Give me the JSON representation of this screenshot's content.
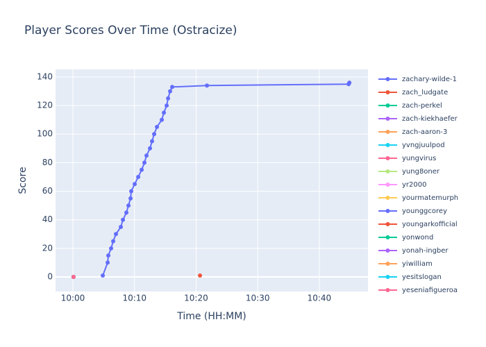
{
  "chart_data": {
    "type": "line",
    "title": "Player Scores Over Time (Ostracize)",
    "x_label": "Time (HH:MM)",
    "y_label": "Score",
    "xlim": [
      597.18,
      647.9
    ],
    "ylim": [
      -10.2,
      145.3
    ],
    "xticks": [
      {
        "value": 600,
        "label": "10:00"
      },
      {
        "value": 610,
        "label": "10:10"
      },
      {
        "value": 620,
        "label": "10:20"
      },
      {
        "value": 630,
        "label": "10:30"
      },
      {
        "value": 640,
        "label": "10:40"
      }
    ],
    "yticks": [
      0,
      20,
      40,
      60,
      80,
      100,
      120,
      140
    ],
    "grid": true,
    "legend": "right",
    "series": [
      {
        "name": "zachary-wilde-1",
        "color": "#636efa",
        "x": [
          604.85,
          605.64,
          605.75,
          606.2,
          606.54,
          606.99,
          607.78,
          608.12,
          608.68,
          609.02,
          609.36,
          609.47,
          610.03,
          610.6,
          611.16,
          611.61,
          611.95,
          612.51,
          612.85,
          613.19,
          613.64,
          614.43,
          614.77,
          615.22,
          615.45,
          615.78,
          616.12,
          621.76,
          644.76,
          644.88
        ],
        "values": [
          1,
          10,
          15,
          20,
          25,
          30,
          35,
          40,
          45,
          50,
          55,
          60,
          65,
          70,
          75,
          80,
          85,
          90,
          95,
          100,
          105,
          110,
          115,
          120,
          125,
          130,
          133,
          134,
          135,
          136
        ]
      },
      {
        "name": "zach_ludgate",
        "color": "#EF553B",
        "x": [
          620.63
        ],
        "values": [
          1
        ]
      },
      {
        "name": "zach-perkel",
        "color": "#00cc96",
        "x": [
          600.1
        ],
        "values": [
          0
        ]
      },
      {
        "name": "zach-kiekhaefer",
        "color": "#ab63fa",
        "x": [
          600.1
        ],
        "values": [
          0
        ]
      },
      {
        "name": "zach-aaron-3",
        "color": "#FFA15A",
        "x": [
          600.1
        ],
        "values": [
          0
        ]
      },
      {
        "name": "yvngjuulpod",
        "color": "#19d3f3",
        "x": [
          600.1
        ],
        "values": [
          0
        ]
      },
      {
        "name": "yungvirus",
        "color": "#FF6692",
        "x": [
          600.1
        ],
        "values": [
          0
        ]
      },
      {
        "name": "yung8oner",
        "color": "#B6E880",
        "x": [
          600.1
        ],
        "values": [
          0
        ]
      },
      {
        "name": "yr2000",
        "color": "#FF97FF",
        "x": [
          600.1
        ],
        "values": [
          0
        ]
      },
      {
        "name": "yourmatemurph",
        "color": "#FECB52",
        "x": [
          600.1
        ],
        "values": [
          0
        ]
      },
      {
        "name": "younggcorey",
        "color": "#636efa",
        "x": [
          600.1
        ],
        "values": [
          0
        ]
      },
      {
        "name": "youngarkofficial",
        "color": "#EF553B",
        "x": [
          600.1
        ],
        "values": [
          0
        ]
      },
      {
        "name": "yonwond",
        "color": "#00cc96",
        "x": [
          600.1
        ],
        "values": [
          0
        ]
      },
      {
        "name": "yonah-ingber",
        "color": "#ab63fa",
        "x": [
          600.1
        ],
        "values": [
          0
        ]
      },
      {
        "name": "yiwilliam",
        "color": "#FFA15A",
        "x": [
          600.1
        ],
        "values": [
          0
        ]
      },
      {
        "name": "yesitslogan",
        "color": "#19d3f3",
        "x": [
          600.1
        ],
        "values": [
          0
        ]
      },
      {
        "name": "yeseniafigueroa",
        "color": "#FF6692",
        "x": [
          600.1
        ],
        "values": [
          0
        ]
      }
    ]
  }
}
